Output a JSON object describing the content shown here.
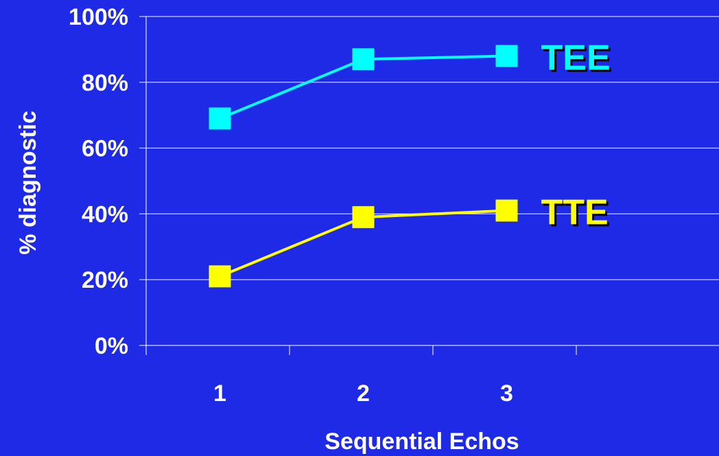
{
  "colors": {
    "background": "#1f2ae6",
    "grid": "#ffffff",
    "axis": "#ffffff",
    "text": "#ffffff",
    "series_shadow": "#000000"
  },
  "chart_data": {
    "type": "line",
    "xlabel": "Sequential Echos",
    "ylabel": "% diagnostic",
    "x": [
      "1",
      "2",
      "3"
    ],
    "ylim": [
      0,
      100
    ],
    "yticks": [
      "0%",
      "20%",
      "40%",
      "60%",
      "80%",
      "100%"
    ],
    "grid": true,
    "series": [
      {
        "name": "TEE",
        "values": [
          69,
          87,
          88
        ],
        "color": "#00ffff",
        "marker": "square"
      },
      {
        "name": "TTE",
        "values": [
          21,
          39,
          41
        ],
        "color": "#ffff00",
        "marker": "square"
      }
    ]
  }
}
